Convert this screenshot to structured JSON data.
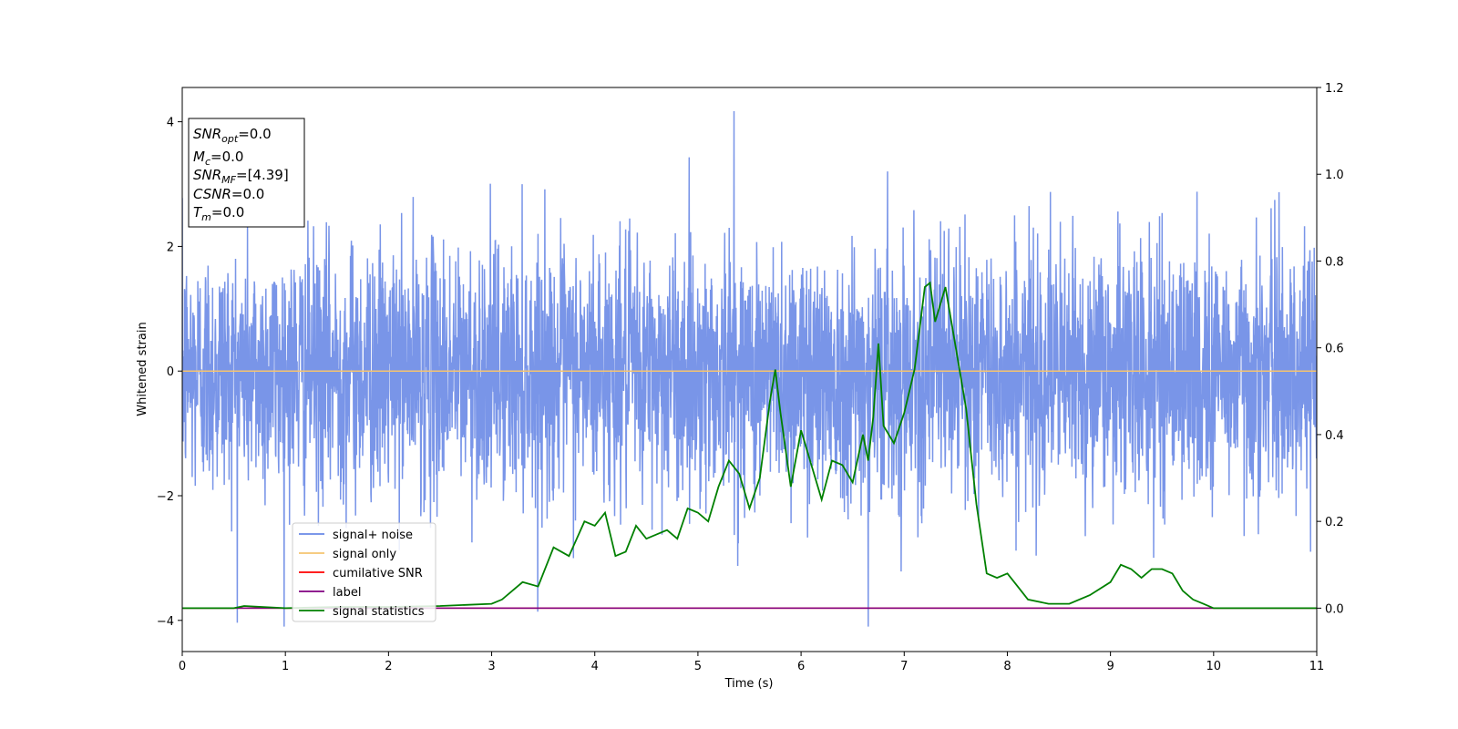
{
  "chart_data": {
    "type": "line",
    "xlabel": "Time (s)",
    "ylabel": "Whitened strain",
    "xlim": [
      0,
      11
    ],
    "ylim_left": [
      -4.5,
      4.55
    ],
    "ylim_right": [
      -0.1,
      1.2
    ],
    "x_ticks": [
      "0",
      "1",
      "2",
      "3",
      "4",
      "5",
      "6",
      "7",
      "8",
      "9",
      "10",
      "11"
    ],
    "y_left_ticks": [
      "−4",
      "−2",
      "0",
      "2",
      "4"
    ],
    "y_left_tick_values": [
      -4,
      -2,
      0,
      2,
      4
    ],
    "y_right_ticks": [
      "0.0",
      "0.2",
      "0.4",
      "0.6",
      "0.8",
      "1.0",
      "1.2"
    ],
    "y_right_tick_values": [
      0.0,
      0.2,
      0.4,
      0.6,
      0.8,
      1.0,
      1.2
    ],
    "grid": false,
    "legend_position": "lower-left",
    "info_box": {
      "lines": [
        {
          "symbol": "SNR",
          "sub": "opt",
          "value": "=0.0"
        },
        {
          "symbol": "M",
          "sub": "c",
          "value": "=0.0"
        },
        {
          "symbol": "SNR",
          "sub": "MF",
          "value": "=[4.39]"
        },
        {
          "symbol": "CSNR",
          "sub": "",
          "value": "=0.0"
        },
        {
          "symbol": "T",
          "sub": "m",
          "value": "=0.0"
        }
      ]
    },
    "series": [
      {
        "name": "signal+ noise",
        "color": "#6a8ae6",
        "axis": "left",
        "kind": "noise",
        "amplitude_std": 1.0,
        "peak_max": 4.17,
        "peak_min": -4.1
      },
      {
        "name": "signal only",
        "color": "#f5c470",
        "axis": "left",
        "kind": "constant",
        "value": 0.0
      },
      {
        "name": "cumilative SNR",
        "color": "#ff0000",
        "axis": "right",
        "kind": "constant",
        "value": 0.0
      },
      {
        "name": "label",
        "color": "#800080",
        "axis": "right",
        "kind": "constant",
        "value": 0.0
      },
      {
        "name": "signal statistics",
        "color": "#008000",
        "axis": "right",
        "kind": "line",
        "x": [
          0,
          0.5,
          0.6,
          1.0,
          1.5,
          2.0,
          2.5,
          3.0,
          3.1,
          3.3,
          3.45,
          3.6,
          3.75,
          3.9,
          4.0,
          4.1,
          4.2,
          4.3,
          4.4,
          4.5,
          4.6,
          4.7,
          4.8,
          4.9,
          5.0,
          5.1,
          5.2,
          5.3,
          5.4,
          5.5,
          5.6,
          5.7,
          5.75,
          5.8,
          5.9,
          6.0,
          6.1,
          6.2,
          6.3,
          6.4,
          6.5,
          6.6,
          6.65,
          6.7,
          6.75,
          6.8,
          6.9,
          7.0,
          7.1,
          7.2,
          7.25,
          7.3,
          7.4,
          7.5,
          7.6,
          7.7,
          7.8,
          7.9,
          8.0,
          8.1,
          8.2,
          8.4,
          8.6,
          8.8,
          9.0,
          9.1,
          9.2,
          9.3,
          9.4,
          9.5,
          9.6,
          9.7,
          9.8,
          9.9,
          10.0,
          10.5,
          11.0
        ],
        "values": [
          0.0,
          0.0,
          0.005,
          0.0,
          0.003,
          0.003,
          0.005,
          0.01,
          0.02,
          0.06,
          0.05,
          0.14,
          0.12,
          0.2,
          0.19,
          0.22,
          0.12,
          0.13,
          0.19,
          0.16,
          0.17,
          0.18,
          0.16,
          0.23,
          0.22,
          0.2,
          0.28,
          0.34,
          0.31,
          0.23,
          0.3,
          0.48,
          0.55,
          0.45,
          0.28,
          0.41,
          0.33,
          0.25,
          0.34,
          0.33,
          0.29,
          0.4,
          0.34,
          0.44,
          0.61,
          0.42,
          0.38,
          0.45,
          0.55,
          0.74,
          0.75,
          0.66,
          0.74,
          0.6,
          0.46,
          0.24,
          0.08,
          0.07,
          0.08,
          0.05,
          0.02,
          0.01,
          0.01,
          0.03,
          0.06,
          0.1,
          0.09,
          0.07,
          0.09,
          0.09,
          0.08,
          0.04,
          0.02,
          0.01,
          0.0,
          0.0,
          0.0
        ]
      }
    ]
  }
}
